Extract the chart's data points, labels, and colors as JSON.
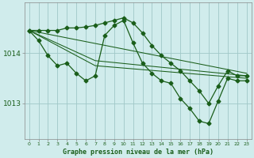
{
  "title": "Graphe pression niveau de la mer (hPa)",
  "bg_color": "#d0ecec",
  "grid_color": "#a0c8c8",
  "line_color": "#1a5e1a",
  "xlim": [
    -0.5,
    23.5
  ],
  "ylim": [
    1012.3,
    1015.0
  ],
  "yticks": [
    1013,
    1014
  ],
  "xticks": [
    0,
    1,
    2,
    3,
    4,
    5,
    6,
    7,
    8,
    9,
    10,
    11,
    12,
    13,
    14,
    15,
    16,
    17,
    18,
    19,
    20,
    21,
    22,
    23
  ],
  "line1_x": [
    0,
    1,
    2,
    3,
    4,
    5,
    6,
    7,
    8,
    9,
    10,
    11,
    12,
    13,
    14,
    15,
    16,
    17,
    18,
    19,
    20,
    21,
    22,
    23
  ],
  "line1_y": [
    1014.45,
    1014.45,
    1014.45,
    1014.45,
    1014.5,
    1014.5,
    1014.52,
    1014.55,
    1014.6,
    1014.65,
    1014.7,
    1014.6,
    1014.4,
    1014.15,
    1013.95,
    1013.8,
    1013.65,
    1013.45,
    1013.25,
    1013.0,
    1013.35,
    1013.65,
    1013.55,
    1013.55
  ],
  "line2_x": [
    0,
    1,
    2,
    3,
    4,
    5,
    6,
    7,
    8,
    9,
    10,
    11,
    12,
    13,
    14,
    15,
    16,
    17,
    18,
    19,
    20,
    21,
    22,
    23
  ],
  "line2_y": [
    1014.45,
    1014.25,
    1013.95,
    1013.75,
    1013.8,
    1013.6,
    1013.45,
    1013.55,
    1014.35,
    1014.55,
    1014.65,
    1014.2,
    1013.8,
    1013.6,
    1013.45,
    1013.4,
    1013.1,
    1012.9,
    1012.65,
    1012.6,
    1013.05,
    1013.5,
    1013.45,
    1013.45
  ],
  "trend1_x": [
    0,
    23
  ],
  "trend1_y": [
    1014.45,
    1013.6
  ],
  "trend2_x": [
    0,
    7,
    23
  ],
  "trend2_y": [
    1014.45,
    1013.85,
    1013.55
  ],
  "trend3_x": [
    0,
    7,
    23
  ],
  "trend3_y": [
    1014.45,
    1013.75,
    1013.5
  ]
}
